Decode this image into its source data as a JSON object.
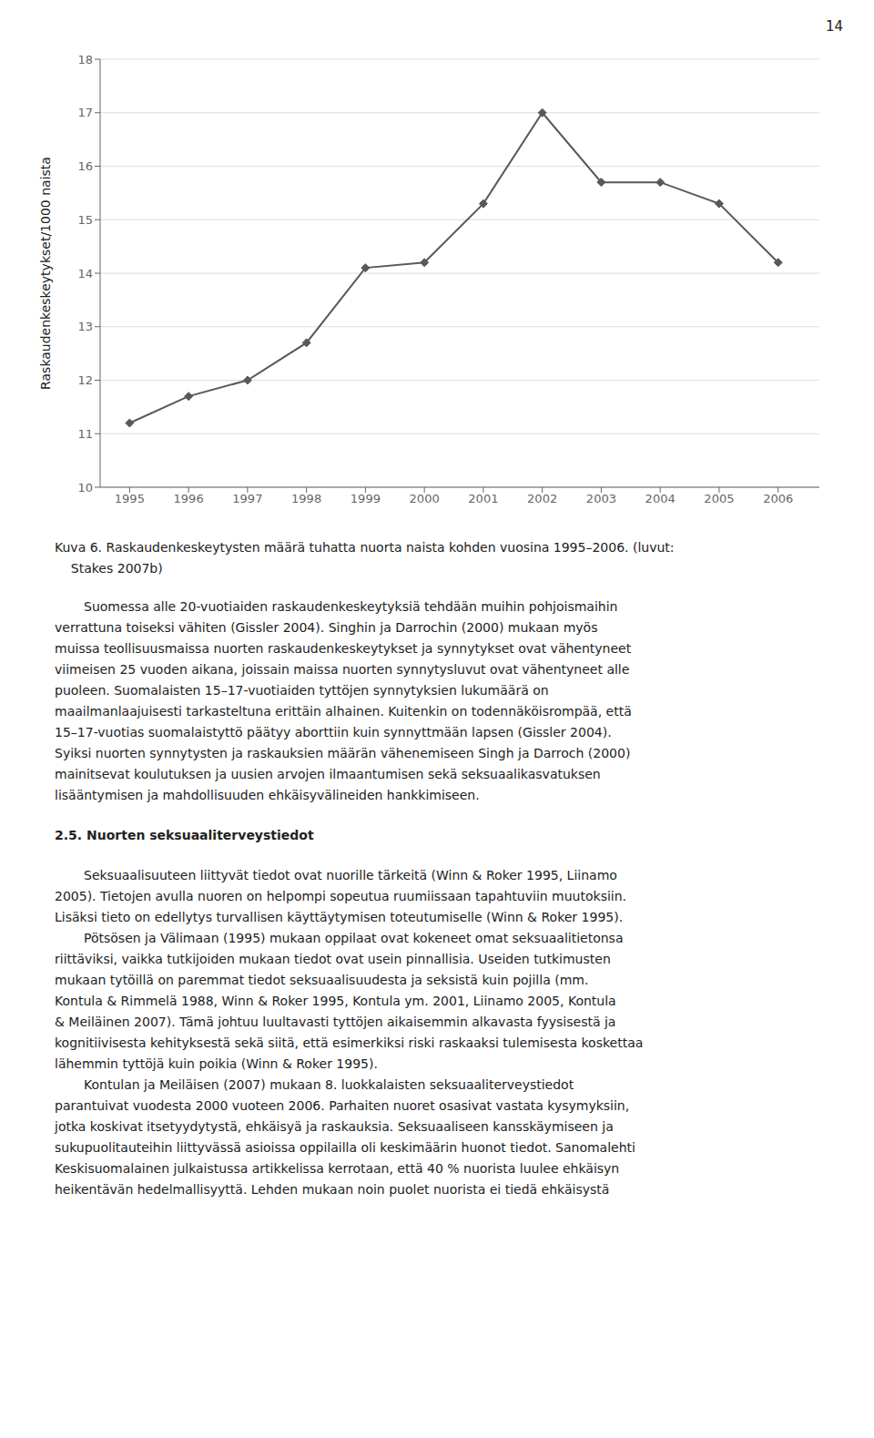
{
  "chart_data": {
    "type": "line",
    "x": [
      1995,
      1996,
      1997,
      1998,
      1999,
      2000,
      2001,
      2002,
      2003,
      2004,
      2005,
      2006
    ],
    "values": [
      11.2,
      11.7,
      12.0,
      12.7,
      14.1,
      14.2,
      15.3,
      17.0,
      15.7,
      15.7,
      15.3,
      14.2
    ],
    "ylabel": "Raskaudenkeskeytykset/1000 naista",
    "xlim": [
      1994.5,
      2006.7
    ],
    "xticks": [
      1995,
      1996,
      1997,
      1998,
      1999,
      2000,
      2001,
      2002,
      2003,
      2004,
      2005,
      2006
    ],
    "ylim": [
      10,
      18
    ],
    "yticks": [
      10,
      11,
      12,
      13,
      14,
      15,
      16,
      17,
      18
    ],
    "grid": true,
    "color": "#595959",
    "marker": "diamond",
    "annotations": [
      {
        "kind": "page",
        "text": "14"
      },
      {
        "kind": "caption",
        "text": "Kuva 6. Raskaudenkeskeytysten määrä tuhatta nuorta naista kohden vuosina 1995–2006. (luvut:"
      },
      {
        "kind": "caption",
        "text": "    Stakes 2007b)"
      },
      {
        "kind": "indent",
        "text": "Suomessa alle 20-vuotiaiden raskaudenkeskeytyksiä tehdään muihin pohjoismaihin"
      },
      {
        "kind": "normal",
        "text": "verrattuna toiseksi vähiten (Gissler 2004). Singhin ja Darrochin (2000) mukaan myös"
      },
      {
        "kind": "normal",
        "text": "muissa teollisuusmaissa nuorten raskaudenkeskeytykset ja synnytykset ovat vähentyneet"
      },
      {
        "kind": "normal",
        "text": "viimeisen 25 vuoden aikana, joissain maissa nuorten synnytysluvut ovat vähentyneet alle"
      },
      {
        "kind": "normal",
        "text": "puoleen. Suomalaisten 15–17-vuotiaiden tyttöjen synnytyksien lukumäärä on"
      },
      {
        "kind": "normal",
        "text": "maailmanlaajuisesti tarkasteltuna erittäin alhainen. Kuitenkin on todennäköisrompää, että"
      },
      {
        "kind": "normal",
        "text": "15–17-vuotias suomalaistyttö päätyy aborttiin kuin synnyttmään lapsen (Gissler 2004)."
      },
      {
        "kind": "normal",
        "text": "Syiksi nuorten synnytysten ja raskauksien määrän vähenemiseen Singh ja Darroch (2000)"
      },
      {
        "kind": "normal",
        "text": "mainitsevat koulutuksen ja uusien arvojen ilmaantumisen sekä seksuaalikasvatuksen"
      },
      {
        "kind": "normal",
        "text": "lisääntymisen ja mahdollisuuden ehkäisyvälineiden hankkimiseen."
      },
      {
        "kind": "bold",
        "text": "2.5. Nuorten seksuaaliterveystiedot"
      },
      {
        "kind": "indent",
        "text": "Seksuaalisuuteen liittyvät tiedot ovat nuorille tärkeitä (Winn & Roker 1995, Liinamo"
      },
      {
        "kind": "normal",
        "text": "2005). Tietojen avulla nuoren on helpompi sopeutua ruumiissaan tapahtuviin muutoksiin."
      },
      {
        "kind": "normal",
        "text": "Lisäksi tieto on edellytys turvallisen käyttäytymisen toteutumiselle (Winn & Roker 1995)."
      },
      {
        "kind": "indent",
        "text": "Pötsösen ja Välimaan (1995) mukaan oppilaat ovat kokeneet omat seksuaalitietonsa"
      },
      {
        "kind": "normal",
        "text": "riittäviksi, vaikka tutkijoiden mukaan tiedot ovat usein pinnallisia. Useiden tutkimusten"
      },
      {
        "kind": "normal",
        "text": "mukaan tytöillä on paremmat tiedot seksuaalisuudesta ja seksistä kuin pojilla (mm."
      },
      {
        "kind": "normal",
        "text": "Kontula & Rimmelä 1988, Winn & Roker 1995, Kontula ym. 2001, Liinamo 2005, Kontula"
      },
      {
        "kind": "normal",
        "text": "& Meiläinen 2007). Tämä johtuu luultavasti tyttöjen aikaisemmin alkavasta fyysisestä ja"
      },
      {
        "kind": "normal",
        "text": "kognitiivisesta kehityksestä sekä siitä, että esimerkiksi riski raskaaksi tulemisesta koskettaa"
      },
      {
        "kind": "normal",
        "text": "lähemmin tyttöjä kuin poikia (Winn & Roker 1995)."
      },
      {
        "kind": "indent",
        "text": "Kontulan ja Meiläisen (2007) mukaan 8. luokkalaisten seksuaaliterveystiedot"
      },
      {
        "kind": "normal",
        "text": "parantuivat vuodesta 2000 vuoteen 2006. Parhaiten nuoret osasivat vastata kysymyksiin,"
      },
      {
        "kind": "normal",
        "text": "jotka koskivat itsetyydytystä, ehkäisyä ja raskauksia. Seksuaaliseen kansskäymiseen ja"
      },
      {
        "kind": "normal",
        "text": "sukupuolitauteihin liittyvässä asioissa oppilailla oli keskimäärin huonot tiedot. Sanomalehti"
      },
      {
        "kind": "normal",
        "text": "Keskisuomalainen julkaistussa artikkelissa kerrotaan, että 40 % nuorista luulee ehkäisyn"
      },
      {
        "kind": "normal",
        "text": "heikentävän hedelmallisyyttä. Lehden mukaan noin puolet nuorista ei tiedä ehkäisystä"
      }
    ]
  }
}
